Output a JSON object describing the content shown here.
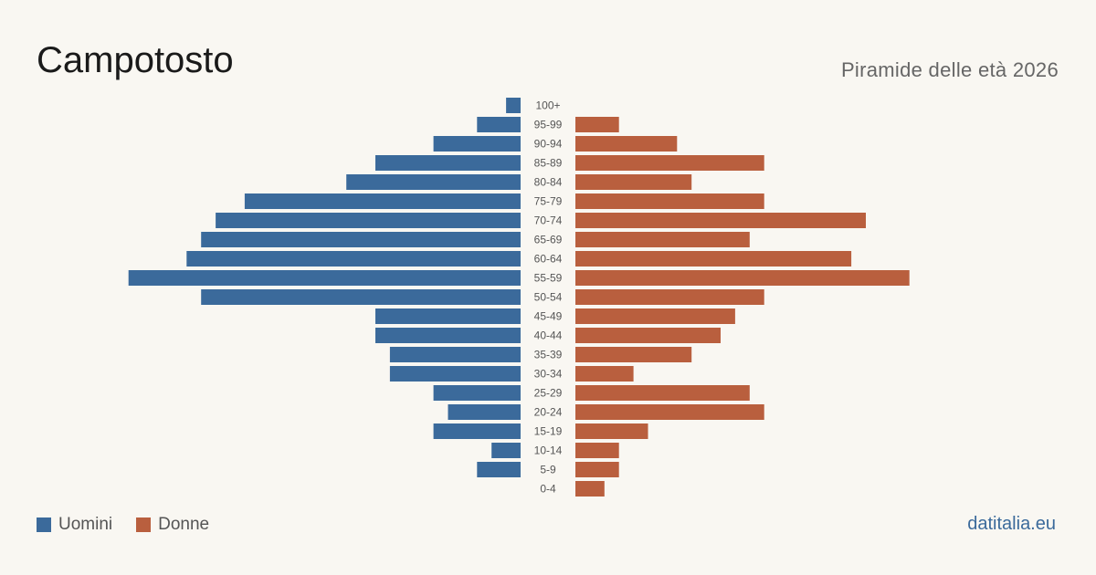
{
  "header": {
    "title": "Campotosto",
    "subtitle": "Piramide delle età 2026"
  },
  "legend": {
    "men_label": "Uomini",
    "women_label": "Donne"
  },
  "brand": "datitalia.eu",
  "colors": {
    "men": "#3b6a9b",
    "women": "#b95f3e",
    "background": "#f9f7f2"
  },
  "chart_data": {
    "type": "bar",
    "orientation": "horizontal-pyramid",
    "categories": [
      "100+",
      "95-99",
      "90-94",
      "85-89",
      "80-84",
      "75-79",
      "70-74",
      "65-69",
      "60-64",
      "55-59",
      "50-54",
      "45-49",
      "40-44",
      "35-39",
      "30-34",
      "25-29",
      "20-24",
      "15-19",
      "10-14",
      "5-9",
      "0-4"
    ],
    "series": [
      {
        "name": "Uomini",
        "side": "left",
        "values": [
          1,
          3,
          6,
          10,
          12,
          19,
          21,
          22,
          23,
          27,
          22,
          10,
          10,
          9,
          9,
          6,
          5,
          6,
          2,
          3,
          0
        ]
      },
      {
        "name": "Donne",
        "side": "right",
        "values": [
          0,
          3,
          7,
          13,
          8,
          13,
          20,
          12,
          19,
          23,
          13,
          11,
          10,
          8,
          4,
          12,
          13,
          5,
          3,
          3,
          2
        ]
      }
    ],
    "legend_position": "bottom-left",
    "grid": false
  }
}
